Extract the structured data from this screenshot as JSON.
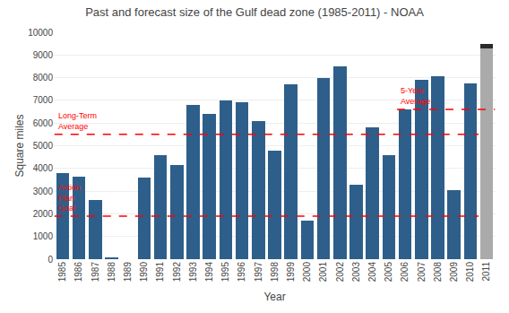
{
  "chart_data": {
    "type": "bar",
    "title": "Past and forecast size of the Gulf dead zone (1985-2011) - NOAA",
    "x_label": "Year",
    "y_label": "Square miles",
    "categories": [
      "1985",
      "1986",
      "1987",
      "1988",
      "1989",
      "1990",
      "1991",
      "1992",
      "1993",
      "1994",
      "1995",
      "1996",
      "1997",
      "1998",
      "1999",
      "2000",
      "2001",
      "2002",
      "2003",
      "2004",
      "2005",
      "2006",
      "2007",
      "2008",
      "2009",
      "2010",
      "2011"
    ],
    "series": [
      {
        "color": "#2E5F8A",
        "values": [
          3800,
          3650,
          2600,
          40,
          0,
          3600,
          4600,
          4150,
          6800,
          6400,
          7000,
          6900,
          6100,
          4800,
          7700,
          1700,
          8000,
          8500,
          3300,
          5800,
          4600,
          6600,
          7900,
          8050,
          3050,
          7750,
          null
        ]
      },
      {
        "color": "#AAAAAA",
        "values": [
          null,
          null,
          null,
          null,
          null,
          null,
          null,
          null,
          null,
          null,
          null,
          null,
          null,
          null,
          null,
          null,
          null,
          null,
          null,
          null,
          null,
          null,
          null,
          null,
          null,
          null,
          9300
        ]
      },
      {
        "color": "#2A2A2A",
        "values": [
          null,
          null,
          null,
          null,
          null,
          null,
          null,
          null,
          null,
          null,
          null,
          null,
          null,
          null,
          null,
          null,
          null,
          null,
          null,
          null,
          null,
          null,
          null,
          null,
          null,
          null,
          200
        ]
      }
    ],
    "stacked": true,
    "lines": [
      {
        "value": 5500,
        "from": "1985",
        "to": "2010",
        "color": "red",
        "line_style": "dashed",
        "label": [
          "Long-Term",
          "Average"
        ]
      },
      {
        "value": 1900,
        "from": "1985",
        "to": "2010",
        "color": "red",
        "line_style": "dashed",
        "label": [
          "Action",
          "Plan",
          "Goal"
        ]
      },
      {
        "value": 6600,
        "from": "2006",
        "to": "2011",
        "color": "red",
        "line_style": "dashed",
        "label": [
          "5-Year",
          "Average"
        ]
      }
    ],
    "ylim": [
      0,
      10000
    ],
    "yticks": [
      0,
      1000,
      2000,
      3000,
      4000,
      5000,
      6000,
      7000,
      8000,
      9000,
      10000
    ],
    "grid": true
  }
}
